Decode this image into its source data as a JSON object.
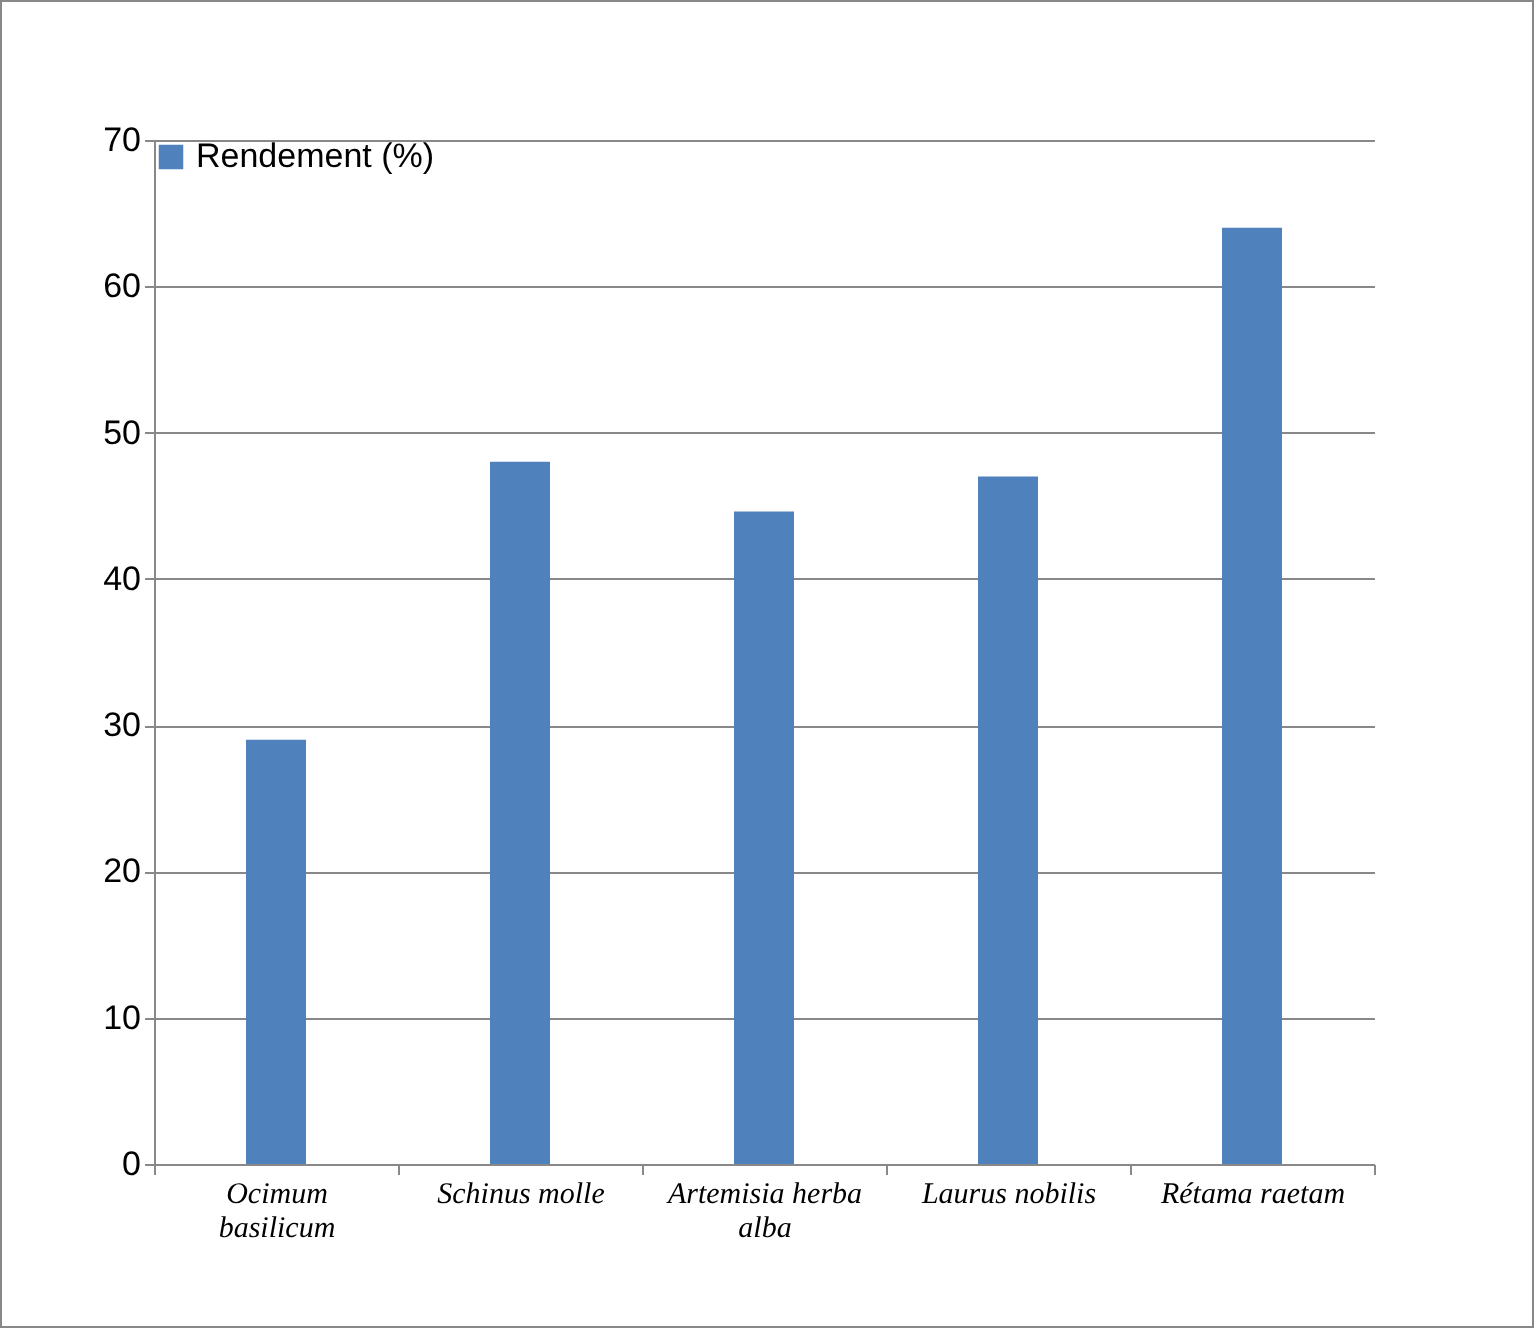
{
  "chart_data": {
    "type": "bar",
    "categories": [
      "Ocimum basilicum",
      "Schinus molle",
      "Artemisia herba alba",
      "Laurus nobilis",
      "Rétama raetam"
    ],
    "series": [
      {
        "name": "Rendement (%)",
        "color": "#4f81bd",
        "values": [
          29,
          48,
          44.6,
          47,
          64
        ]
      }
    ],
    "ylim": [
      0,
      70
    ],
    "yticks": [
      0,
      10,
      20,
      30,
      40,
      50,
      60,
      70
    ],
    "grid": "y",
    "legend": "top left"
  }
}
